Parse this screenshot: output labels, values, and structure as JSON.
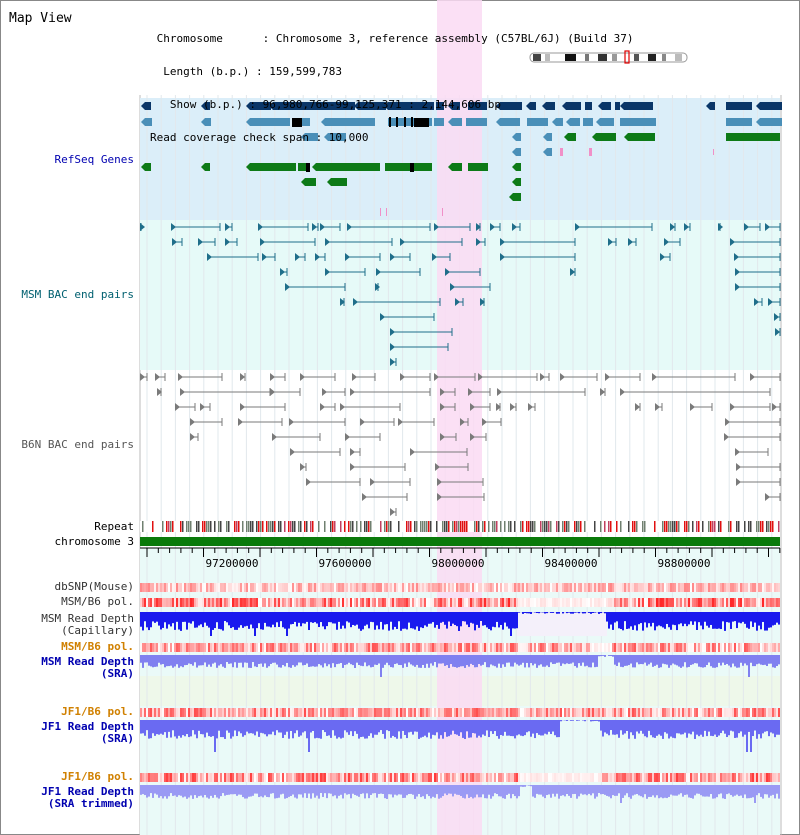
{
  "header": {
    "title": "Map View",
    "info_lines": [
      " Chromosome      : Chromosome 3, reference assembly (C57BL/6J) (Build 37)",
      "  Length (b.p.) : 159,599,783",
      "   Show (b.p.) : 96,980,766-99,125,371 : 2,144,606 bp",
      "Read coverage check span : 10,000"
    ]
  },
  "track_labels": {
    "refseq": "RefSeq Genes",
    "msm_bac": "MSM BAC end pairs",
    "b6n_bac": "B6N BAC end pairs",
    "repeat": "Repeat",
    "chromosome": "chromosome 3",
    "dbsnp": "dbSNP(Mouse)",
    "msm_b6_pol_cap": "MSM/B6 pol.",
    "msm_depth_cap_1": "MSM Read Depth",
    "msm_depth_cap_2": "(Capillary)",
    "msm_b6_pol_sra": "MSM/B6 pol.",
    "msm_depth_sra_1": "MSM Read Depth",
    "msm_depth_sra_2": "(SRA)",
    "jf1_b6_pol_sra": "JF1/B6 pol.",
    "jf1_depth_sra_1": "JF1 Read Depth",
    "jf1_depth_sra_2": "(SRA)",
    "jf1_b6_pol_trim": "JF1/B6 pol.",
    "jf1_depth_trim_1": "JF1 Read Depth",
    "jf1_depth_trim_2": "(SRA trimmed)"
  },
  "ruler": {
    "ticks": [
      "97200000",
      "97600000",
      "98000000",
      "98400000",
      "98800000"
    ]
  },
  "colors": {
    "refseq_bg": "#dbeef9",
    "bac_bg": "#e6faf8",
    "highlight": "#fadbf3",
    "gene_navy": "#0a3668",
    "gene_steel": "#4a8fb8",
    "gene_green": "#0d7a17",
    "msm_pair": "#1f6e8a",
    "b6n_pair": "#7a7a7a",
    "chromosome_bar": "#0a7a0a",
    "depth_blue": "#1a1aee",
    "depth_light": "#8080f0",
    "label_blue": "#0000b0",
    "label_orange": "#d08000",
    "label_teal": "#006070"
  }
}
